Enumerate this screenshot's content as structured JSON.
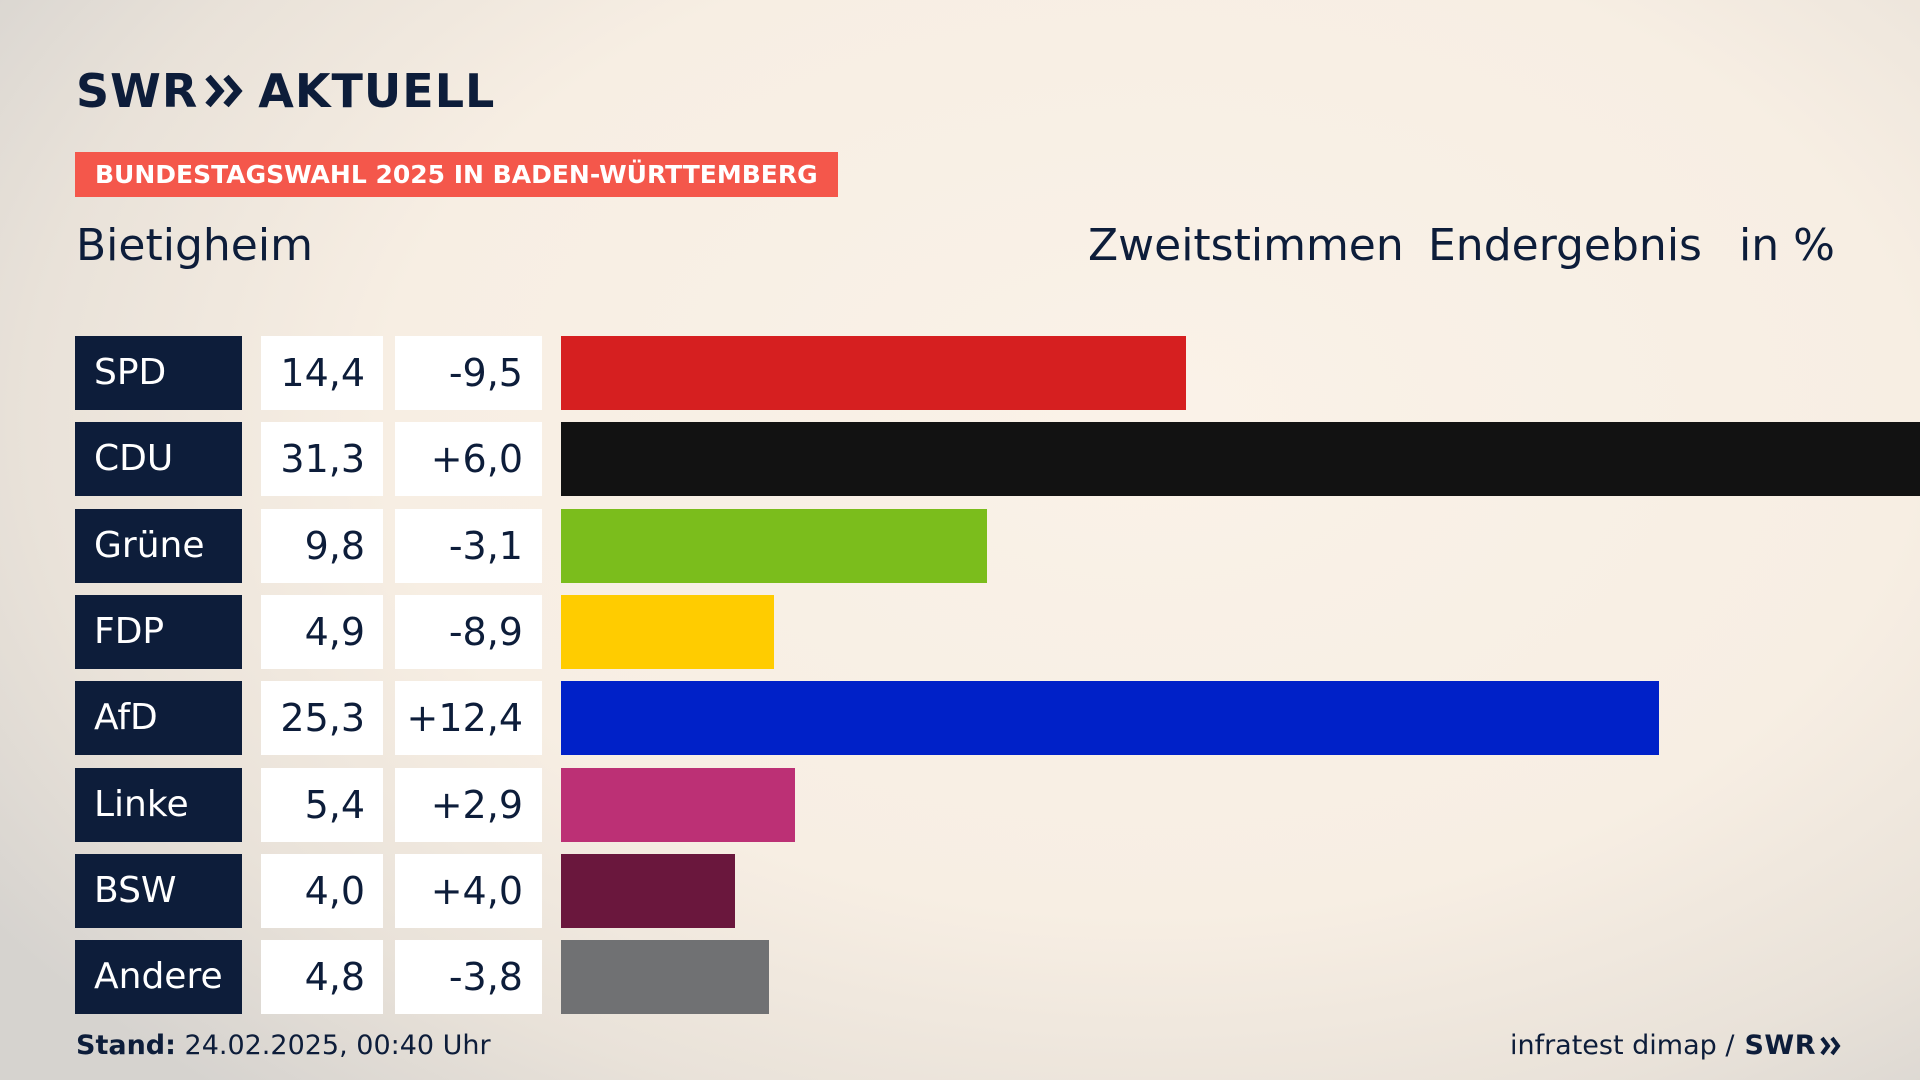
{
  "logo": {
    "text_left": "SWR",
    "text_right": "AKTUELL"
  },
  "banner": {
    "label": "BUNDESTAGSWAHL 2025 IN BADEN-WÜRTTEMBERG"
  },
  "header": {
    "region": "Bietigheim",
    "vote_type": "Zweitstimmen",
    "status": "Endergebnis",
    "unit": "in %"
  },
  "colors": {
    "brand_navy": "#0d1d3a",
    "banner_red": "#f4574b"
  },
  "chart_data": {
    "type": "bar",
    "orientation": "horizontal",
    "categories": [
      "SPD",
      "CDU",
      "Grüne",
      "FDP",
      "AfD",
      "Linke",
      "BSW",
      "Andere"
    ],
    "values": [
      14.4,
      31.3,
      9.8,
      4.9,
      25.3,
      5.4,
      4.0,
      4.8
    ],
    "value_labels": [
      "14,4",
      "31,3",
      "9,8",
      "4,9",
      "25,3",
      "5,4",
      "4,0",
      "4,8"
    ],
    "diff_labels": [
      "-9,5",
      "+6,0",
      "-3,1",
      "-8,9",
      "+12,4",
      "+2,9",
      "+4,0",
      "-3,8"
    ],
    "colors": [
      "#d61f20",
      "#121212",
      "#7bbd1c",
      "#ffcc00",
      "#0021c8",
      "#bc3075",
      "#6a173d",
      "#707173"
    ],
    "xlim": [
      0,
      31.3
    ],
    "title": "Zweitstimmen Endergebnis",
    "unit": "in %",
    "grid": false,
    "legend": "none"
  },
  "footer": {
    "stand_label": "Stand:",
    "stand_value": "24.02.2025, 00:40 Uhr",
    "source": "infratest dimap /",
    "source_brand": "SWR"
  }
}
